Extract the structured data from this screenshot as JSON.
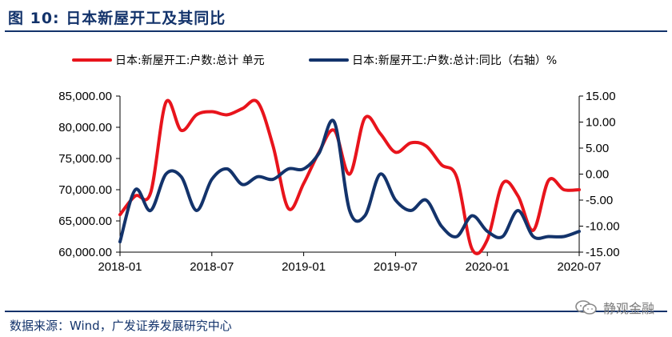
{
  "header": {
    "title": "图 10:  日本新屋开工及其同比"
  },
  "footer": {
    "source": "数据来源：Wind，广发证券发展研究中心",
    "watermark": "静观金融"
  },
  "colors": {
    "primary": "#e8141c",
    "secondary": "#13336b",
    "brand": "#13336b"
  },
  "chart_data": {
    "type": "line",
    "x": [
      "2018-01",
      "2018-02",
      "2018-03",
      "2018-04",
      "2018-05",
      "2018-06",
      "2018-07",
      "2018-08",
      "2018-09",
      "2018-10",
      "2018-11",
      "2018-12",
      "2019-01",
      "2019-02",
      "2019-03",
      "2019-04",
      "2019-05",
      "2019-06",
      "2019-07",
      "2019-08",
      "2019-09",
      "2019-10",
      "2019-11",
      "2019-12",
      "2020-01",
      "2020-02",
      "2020-03",
      "2020-04",
      "2020-05",
      "2020-06",
      "2020-07"
    ],
    "xticks": [
      "2018-01",
      "2018-07",
      "2019-01",
      "2019-07",
      "2020-01",
      "2020-07"
    ],
    "series": [
      {
        "name": "日本:新屋开工:户数:总计 单元",
        "axis": "left",
        "color": "#e8141c",
        "values": [
          66000,
          69000,
          69500,
          84000,
          79500,
          82000,
          82500,
          82000,
          83000,
          84000,
          77000,
          67000,
          71000,
          76000,
          79500,
          72500,
          81500,
          79000,
          76000,
          77500,
          77000,
          74000,
          72000,
          60500,
          62000,
          71000,
          69000,
          63500,
          71500,
          70000,
          70000
        ]
      },
      {
        "name": "日本:新屋开工:户数:总计:同比（右轴）%",
        "axis": "right",
        "color": "#13336b",
        "values": [
          -13,
          -3,
          -7,
          0,
          -0.5,
          -7,
          -1,
          1,
          -2,
          -0.5,
          -1,
          1,
          1,
          4,
          10,
          -7,
          -8,
          0,
          -5,
          -7,
          -5,
          -10,
          -12,
          -8,
          -11,
          -12,
          -7,
          -12,
          -12,
          -12,
          -11
        ]
      }
    ],
    "y_left": {
      "min": 60000,
      "max": 85000,
      "ticks": [
        "60,000.00",
        "65,000.00",
        "70,000.00",
        "75,000.00",
        "80,000.00",
        "85,000.00"
      ]
    },
    "y_right": {
      "min": -15,
      "max": 15,
      "ticks": [
        "15.00",
        "10.00",
        "5.00",
        "0.00",
        "-5.00",
        "-10.00",
        "-15.00"
      ]
    },
    "grid": false,
    "legend_placement": "top"
  }
}
